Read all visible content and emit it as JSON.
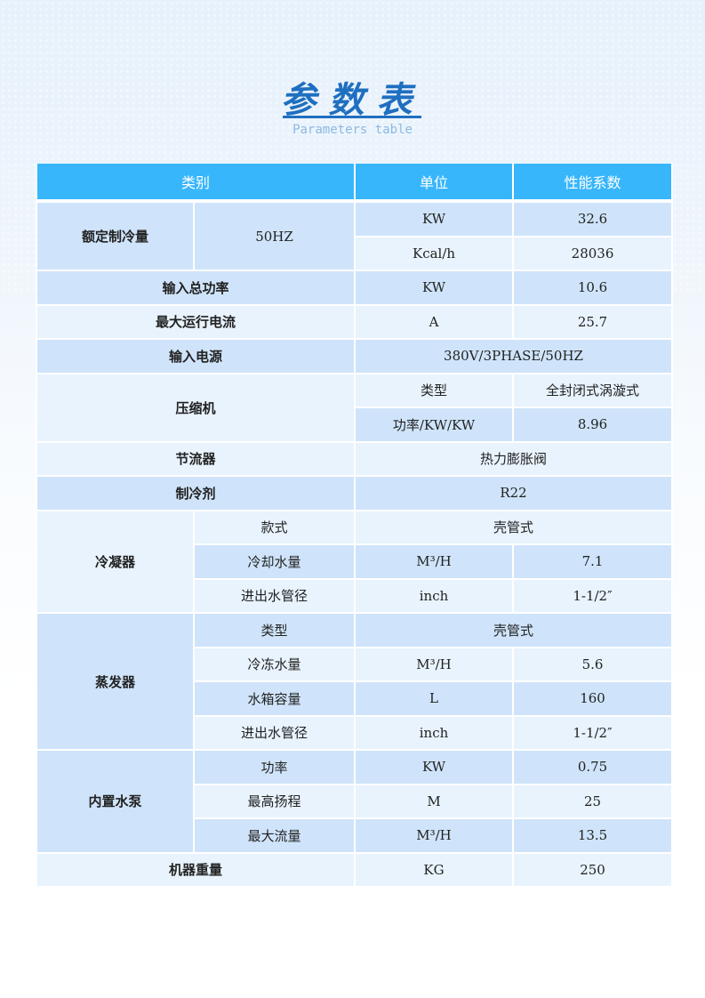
{
  "title": "参数表",
  "subtitle": "Parameters table",
  "colors": {
    "header": "#38b6fb",
    "row_dark": "#cfe4fa",
    "row_light": "#e8f3fd",
    "title": "#1f6fc0"
  },
  "table": {
    "headers": [
      {
        "text": "类别",
        "colspan": 2
      },
      {
        "text": "单位",
        "colspan": 1
      },
      {
        "text": "性能系数",
        "colspan": 1
      }
    ],
    "rows": [
      [
        {
          "text": "额定制冷量",
          "rowspan": 2,
          "bold": true
        },
        {
          "text": "50HZ",
          "rowspan": 2
        },
        {
          "text": "KW"
        },
        {
          "text": "32.6"
        }
      ],
      [
        {
          "text": "Kcal/h"
        },
        {
          "text": "28036"
        }
      ],
      [
        {
          "text": "输入总功率",
          "colspan": 2,
          "bold": true
        },
        {
          "text": "KW"
        },
        {
          "text": "10.6"
        }
      ],
      [
        {
          "text": "最大运行电流",
          "colspan": 2,
          "bold": true
        },
        {
          "text": "A"
        },
        {
          "text": "25.7"
        }
      ],
      [
        {
          "text": "输入电源",
          "colspan": 2,
          "bold": true
        },
        {
          "text": "380V/3PHASE/50HZ",
          "colspan": 2
        }
      ],
      [
        {
          "text": "压缩机",
          "colspan": 2,
          "rowspan": 2,
          "bold": true
        },
        {
          "text": "类型"
        },
        {
          "text": "全封闭式涡漩式"
        }
      ],
      [
        {
          "text": "功率/KW/KW"
        },
        {
          "text": "8.96"
        }
      ],
      [
        {
          "text": "节流器",
          "colspan": 2,
          "bold": true
        },
        {
          "text": "热力膨胀阀",
          "colspan": 2
        }
      ],
      [
        {
          "text": "制冷剂",
          "colspan": 2,
          "bold": true
        },
        {
          "text": "R22",
          "colspan": 2
        }
      ],
      [
        {
          "text": "冷凝器",
          "rowspan": 3,
          "bold": true
        },
        {
          "text": "款式"
        },
        {
          "text": "壳管式",
          "colspan": 2
        }
      ],
      [
        {
          "text": "冷却水量"
        },
        {
          "text": "M³/H"
        },
        {
          "text": "7.1"
        }
      ],
      [
        {
          "text": "进出水管径"
        },
        {
          "text": "inch"
        },
        {
          "text": "1-1/2″"
        }
      ],
      [
        {
          "text": "蒸发器",
          "rowspan": 4,
          "bold": true
        },
        {
          "text": "类型"
        },
        {
          "text": "壳管式",
          "colspan": 2
        }
      ],
      [
        {
          "text": "冷冻水量"
        },
        {
          "text": "M³/H"
        },
        {
          "text": "5.6"
        }
      ],
      [
        {
          "text": "水箱容量"
        },
        {
          "text": "L"
        },
        {
          "text": "160"
        }
      ],
      [
        {
          "text": "进出水管径"
        },
        {
          "text": "inch"
        },
        {
          "text": "1-1/2″"
        }
      ],
      [
        {
          "text": "内置水泵",
          "rowspan": 3,
          "bold": true
        },
        {
          "text": "功率"
        },
        {
          "text": "KW"
        },
        {
          "text": "0.75"
        }
      ],
      [
        {
          "text": "最高扬程"
        },
        {
          "text": "M"
        },
        {
          "text": "25"
        }
      ],
      [
        {
          "text": "最大流量"
        },
        {
          "text": "M³/H"
        },
        {
          "text": "13.5"
        }
      ],
      [
        {
          "text": "机器重量",
          "colspan": 2,
          "bold": true
        },
        {
          "text": "KG"
        },
        {
          "text": "250"
        }
      ]
    ]
  }
}
